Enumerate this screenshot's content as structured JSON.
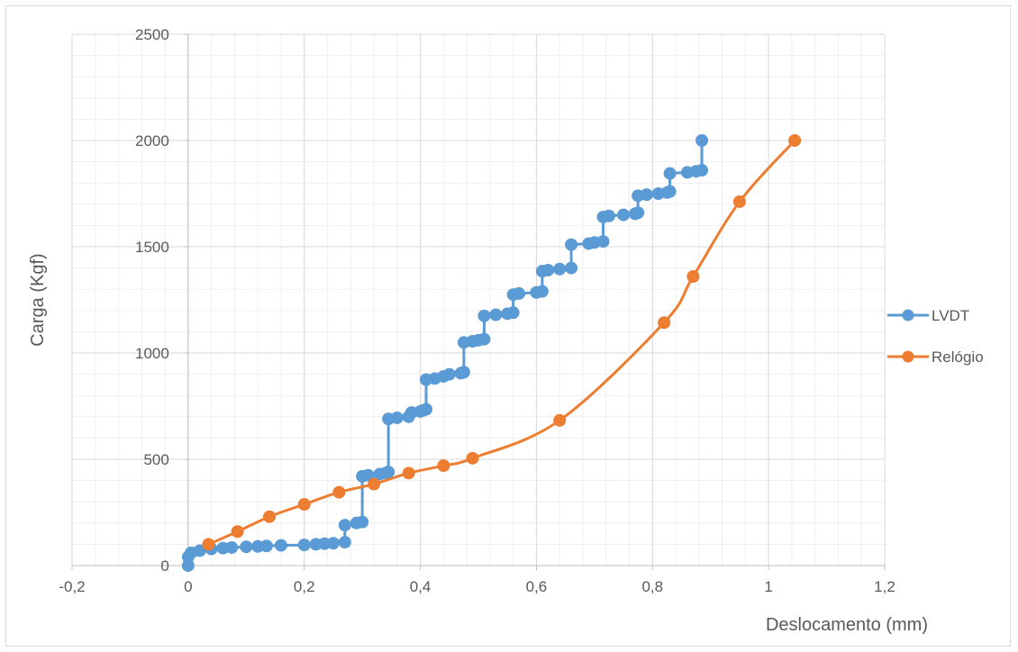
{
  "chart_data": {
    "type": "scatter",
    "title": "",
    "xlabel": "Deslocamento (mm)",
    "ylabel": "Carga (Kgf)",
    "xlim": [
      -0.2,
      1.2
    ],
    "ylim": [
      0,
      2500
    ],
    "x_ticks": [
      -0.2,
      0,
      0.2,
      0.4,
      0.6,
      0.8,
      1,
      1.2
    ],
    "x_tick_labels": [
      "-0,2",
      "0",
      "0,2",
      "0,4",
      "0,6",
      "0,8",
      "1",
      "1,2"
    ],
    "y_ticks": [
      0,
      500,
      1000,
      1500,
      2000,
      2500
    ],
    "y_tick_labels": [
      "0",
      "500",
      "1000",
      "1500",
      "2000",
      "2500"
    ],
    "grid": true,
    "minor_grid": true,
    "legend_position": "right",
    "series": [
      {
        "name": "LVDT",
        "color": "#5b9bd5",
        "smooth": false,
        "points": [
          [
            0.0,
            0
          ],
          [
            0.0,
            40
          ],
          [
            0.005,
            60
          ],
          [
            0.02,
            70
          ],
          [
            0.04,
            78
          ],
          [
            0.06,
            82
          ],
          [
            0.075,
            85
          ],
          [
            0.1,
            88
          ],
          [
            0.12,
            90
          ],
          [
            0.135,
            92
          ],
          [
            0.16,
            95
          ],
          [
            0.2,
            97
          ],
          [
            0.22,
            100
          ],
          [
            0.235,
            103
          ],
          [
            0.25,
            105
          ],
          [
            0.27,
            110
          ],
          [
            0.27,
            190
          ],
          [
            0.29,
            200
          ],
          [
            0.3,
            205
          ],
          [
            0.3,
            420
          ],
          [
            0.31,
            425
          ],
          [
            0.33,
            430
          ],
          [
            0.34,
            435
          ],
          [
            0.345,
            440
          ],
          [
            0.345,
            690
          ],
          [
            0.36,
            695
          ],
          [
            0.38,
            700
          ],
          [
            0.385,
            720
          ],
          [
            0.4,
            725
          ],
          [
            0.405,
            730
          ],
          [
            0.41,
            735
          ],
          [
            0.41,
            875
          ],
          [
            0.425,
            880
          ],
          [
            0.44,
            890
          ],
          [
            0.45,
            900
          ],
          [
            0.47,
            905
          ],
          [
            0.475,
            910
          ],
          [
            0.475,
            1050
          ],
          [
            0.49,
            1055
          ],
          [
            0.5,
            1060
          ],
          [
            0.51,
            1065
          ],
          [
            0.51,
            1175
          ],
          [
            0.53,
            1180
          ],
          [
            0.55,
            1185
          ],
          [
            0.56,
            1190
          ],
          [
            0.56,
            1275
          ],
          [
            0.57,
            1280
          ],
          [
            0.6,
            1285
          ],
          [
            0.61,
            1290
          ],
          [
            0.61,
            1385
          ],
          [
            0.62,
            1390
          ],
          [
            0.64,
            1395
          ],
          [
            0.66,
            1400
          ],
          [
            0.66,
            1510
          ],
          [
            0.69,
            1515
          ],
          [
            0.7,
            1520
          ],
          [
            0.715,
            1525
          ],
          [
            0.715,
            1640
          ],
          [
            0.725,
            1645
          ],
          [
            0.75,
            1650
          ],
          [
            0.77,
            1655
          ],
          [
            0.775,
            1660
          ],
          [
            0.775,
            1740
          ],
          [
            0.79,
            1745
          ],
          [
            0.81,
            1750
          ],
          [
            0.825,
            1755
          ],
          [
            0.83,
            1760
          ],
          [
            0.83,
            1845
          ],
          [
            0.86,
            1850
          ],
          [
            0.875,
            1855
          ],
          [
            0.885,
            1860
          ],
          [
            0.885,
            2000
          ]
        ]
      },
      {
        "name": "Relógio",
        "color": "#ed7d31",
        "smooth": true,
        "points": [
          [
            0.035,
            100
          ],
          [
            0.085,
            160
          ],
          [
            0.14,
            230
          ],
          [
            0.2,
            288
          ],
          [
            0.26,
            345
          ],
          [
            0.32,
            383
          ],
          [
            0.38,
            435
          ],
          [
            0.44,
            470
          ],
          [
            0.49,
            505
          ],
          [
            0.64,
            683
          ],
          [
            0.82,
            1143
          ],
          [
            0.87,
            1360
          ],
          [
            0.95,
            1712
          ],
          [
            1.045,
            2000
          ]
        ]
      }
    ]
  }
}
